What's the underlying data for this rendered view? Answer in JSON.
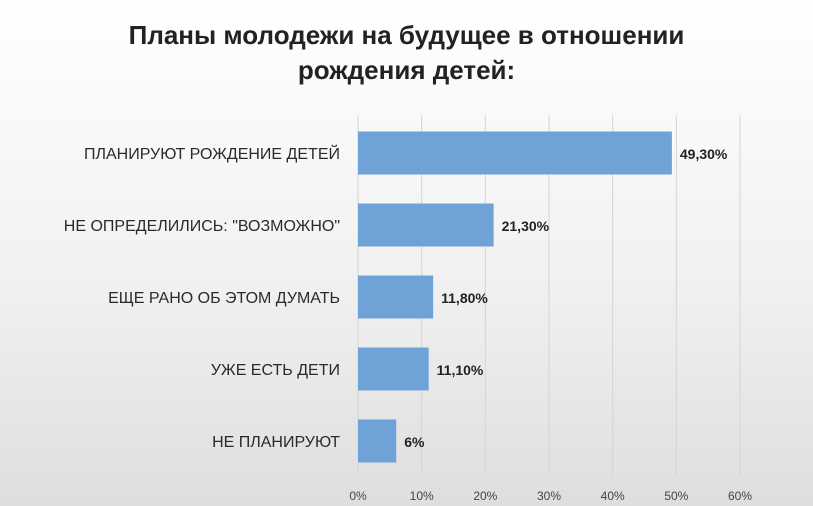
{
  "chart_data": {
    "type": "bar",
    "orientation": "horizontal",
    "title_lines": [
      "Планы молодежи на будущее в отношении",
      "рождения детей:"
    ],
    "categories": [
      "ПЛАНИРУЮТ РОЖДЕНИЕ ДЕТЕЙ",
      "НЕ ОПРЕДЕЛИЛИСЬ: \"ВОЗМОЖНО\"",
      "ЕЩЕ РАНО ОБ ЭТОМ ДУМАТЬ",
      "УЖЕ ЕСТЬ ДЕТИ",
      "НЕ ПЛАНИРУЮТ"
    ],
    "values": [
      49.3,
      21.3,
      11.8,
      11.1,
      6
    ],
    "value_labels": [
      "49,30%",
      "21,30%",
      "11,80%",
      "11,10%",
      "6%"
    ],
    "xlim": [
      0,
      60
    ],
    "x_ticks": [
      0,
      10,
      20,
      30,
      40,
      50,
      60
    ],
    "x_tick_labels": [
      "0%",
      "10%",
      "20%",
      "30%",
      "40%",
      "50%",
      "60%"
    ],
    "grid": "vertical",
    "legend": "none",
    "bar_color": "#6fa2d6"
  }
}
